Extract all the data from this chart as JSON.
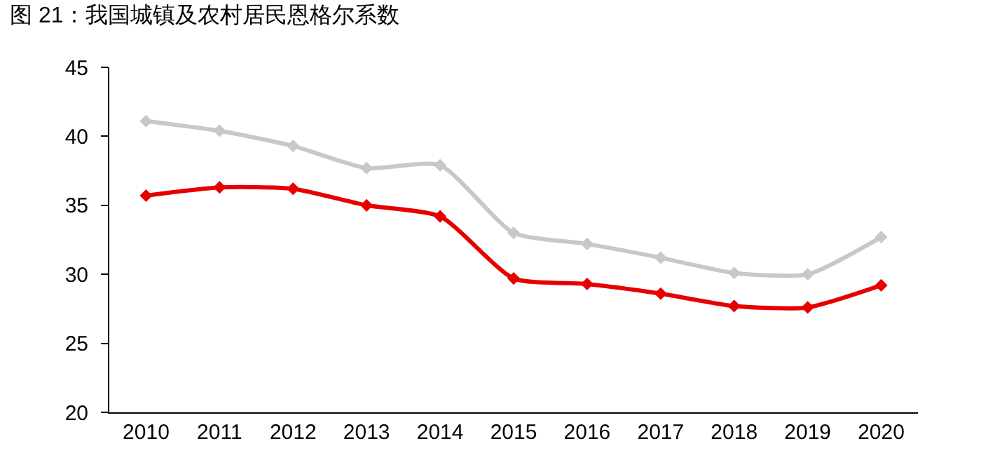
{
  "chart_data": {
    "type": "line",
    "title": "图 21：我国城镇及农村居民恩格尔系数",
    "categories": [
      "2010",
      "2011",
      "2012",
      "2013",
      "2014",
      "2015",
      "2016",
      "2017",
      "2018",
      "2019",
      "2020"
    ],
    "series": [
      {
        "color": "#c8c8c8",
        "values": [
          41.1,
          40.4,
          39.3,
          37.7,
          37.9,
          33.0,
          32.2,
          31.2,
          30.1,
          30.0,
          32.7
        ]
      },
      {
        "color": "#e60000",
        "values": [
          35.7,
          36.3,
          36.2,
          35.0,
          34.2,
          29.7,
          29.3,
          28.6,
          27.7,
          27.6,
          29.2
        ]
      }
    ],
    "ylim": [
      20,
      45
    ],
    "yticks": [
      20,
      25,
      30,
      35,
      40,
      45
    ],
    "marker": "diamond",
    "line_style": "solid"
  }
}
